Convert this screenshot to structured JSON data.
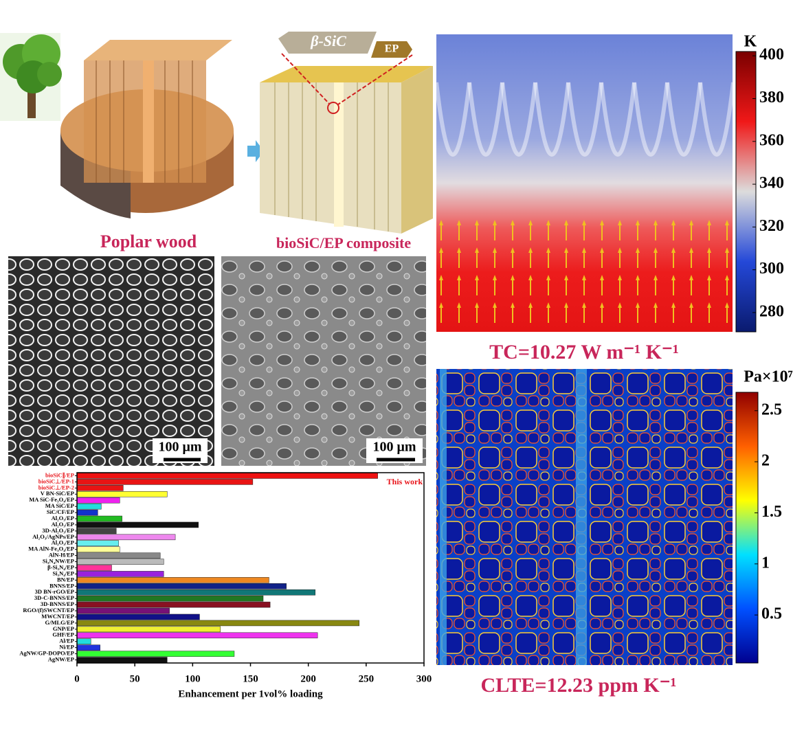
{
  "panels": {
    "wood_label": "Poplar wood",
    "composite_label": "bioSiC/EP composite",
    "sic_label": "β-SiC",
    "ep_label": "EP",
    "scale_bar_1": "100 μm",
    "scale_bar_2": "100 μm",
    "tc_label": "TC=10.27 W m⁻¹ K⁻¹",
    "clte_label": "CLTE=12.23 ppm K⁻¹"
  },
  "chart_data": [
    {
      "type": "hbar",
      "x_label": "Enhancement per 1vol% loading",
      "annotation": "This work",
      "categories": [
        "bioSiC∥/EP",
        "bioSiC⊥/EP-1",
        "bioSiC⊥/EP-2",
        "V BN-SiC/EP",
        "MA SiC-Fe₃O₄/EP",
        "MA SiC/EP",
        "SiC/CF/EP",
        "Al₂O₃/EP",
        "Al₂O₃/EP",
        "3D-Al₂O₃/EP",
        "Al₂O₃/AgNPs/EP",
        "Al₂O₃/EP",
        "MA AlN-Fe₃O₄/EP",
        "AlN-H/EP",
        "Si₃N₄NW/EP",
        "β-Si₃N₄/EP",
        "Si₃N₄/EP",
        "BN/EP",
        "BNNS/EP",
        "3D BN-rGO/EP",
        "3D-C-BNNS/EP",
        "3D-BNNS/EP",
        "RGO/(f)SWCNT/EP",
        "MWCNT/EP",
        "G/MLG/EP",
        "GNP/EP",
        "GHF/EP",
        "Al/EP",
        "Ni/EP",
        "AgNW/GP-DOPO/EP",
        "AgNW/EP"
      ],
      "values": [
        260,
        152,
        40,
        78,
        37,
        21,
        18,
        39,
        105,
        34,
        85,
        36,
        37,
        72,
        75,
        30,
        75,
        166,
        181,
        206,
        161,
        167,
        80,
        106,
        244,
        124,
        208,
        12,
        20,
        136,
        78
      ],
      "colors": [
        "#ee1111",
        "#e81414",
        "#e81414",
        "#ffff33",
        "#ee22ee",
        "#22dddd",
        "#1133cc",
        "#22bb22",
        "#111111",
        "#444444",
        "#ee88ee",
        "#66eeee",
        "#ffff99",
        "#888888",
        "#bbbbbb",
        "#ff3399",
        "#9922dd",
        "#ee8822",
        "#112288",
        "#117777",
        "#227722",
        "#881122",
        "#771177",
        "#111188",
        "#888811",
        "#eeee33",
        "#ee33ee",
        "#22dddd",
        "#2233dd",
        "#33ff33",
        "#111111"
      ],
      "label_colors": [
        "#e8141a",
        "#e8141a",
        "#e8141a",
        "#000000",
        "#000000",
        "#000000",
        "#000000",
        "#000000",
        "#000000",
        "#000000",
        "#000000",
        "#000000",
        "#000000",
        "#000000",
        "#000000",
        "#000000",
        "#000000",
        "#000000",
        "#000000",
        "#000000",
        "#000000",
        "#000000",
        "#000000",
        "#000000",
        "#000000",
        "#000000",
        "#000000",
        "#000000",
        "#000000",
        "#000000",
        "#000000"
      ],
      "xlim": [
        0,
        300
      ],
      "xticks": [
        0,
        50,
        100,
        150,
        200,
        250,
        300
      ]
    },
    {
      "type": "colorbar",
      "title": "K",
      "ylim": [
        271,
        402
      ],
      "yticks": [
        280,
        300,
        320,
        340,
        360,
        380,
        400
      ],
      "colors": [
        "#0a1a6e",
        "#2448d8",
        "#dcdcdc",
        "#f01818",
        "#7a0000"
      ]
    },
    {
      "type": "colorbar",
      "title": "Pa×10⁷",
      "ylim": [
        0.03,
        2.68
      ],
      "yticks": [
        0.5,
        1.0,
        1.5,
        2.0,
        2.5
      ],
      "colors": [
        "#00008f",
        "#0050ff",
        "#00e0ff",
        "#ffff00",
        "#ff6000",
        "#900000"
      ]
    }
  ]
}
